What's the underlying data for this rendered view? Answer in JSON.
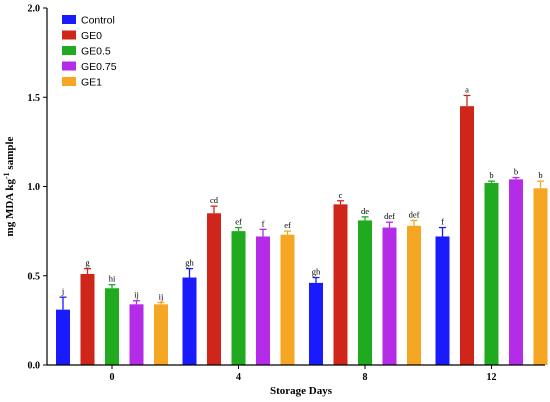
{
  "chart_data": {
    "type": "bar",
    "xlabel": "Storage Days",
    "ylabel_main": "mg MDA kg",
    "ylabel_sup": "-1",
    "ylabel_tail": " sample",
    "ylim": [
      0,
      2.0
    ],
    "yticks": [
      "0.0",
      "0.5",
      "1.0",
      "1.5",
      "2.0"
    ],
    "categories": [
      "0",
      "4",
      "8",
      "12"
    ],
    "legend_position": "top-left",
    "series": [
      {
        "name": "Control",
        "color": "#1a1aff",
        "values": [
          0.31,
          0.49,
          0.46,
          0.72
        ],
        "errors": [
          0.07,
          0.05,
          0.03,
          0.05
        ],
        "labels": [
          "j",
          "gh",
          "gh",
          "f"
        ]
      },
      {
        "name": "GE0",
        "color": "#d0251a",
        "values": [
          0.51,
          0.85,
          0.9,
          1.45
        ],
        "errors": [
          0.03,
          0.04,
          0.02,
          0.06
        ],
        "labels": [
          "g",
          "cd",
          "c",
          "a"
        ]
      },
      {
        "name": "GE0.5",
        "color": "#1faa1f",
        "values": [
          0.43,
          0.75,
          0.81,
          1.02
        ],
        "errors": [
          0.02,
          0.02,
          0.02,
          0.01
        ],
        "labels": [
          "hi",
          "ef",
          "de",
          "b"
        ]
      },
      {
        "name": "GE0.75",
        "color": "#b42be8",
        "values": [
          0.34,
          0.72,
          0.77,
          1.04
        ],
        "errors": [
          0.02,
          0.04,
          0.03,
          0.01
        ],
        "labels": [
          "ij",
          "f",
          "def",
          "b"
        ]
      },
      {
        "name": "GE1",
        "color": "#f5a623",
        "values": [
          0.34,
          0.73,
          0.78,
          0.99
        ],
        "errors": [
          0.01,
          0.02,
          0.03,
          0.04
        ],
        "labels": [
          "ij",
          "ef",
          "def",
          "b"
        ]
      }
    ]
  }
}
